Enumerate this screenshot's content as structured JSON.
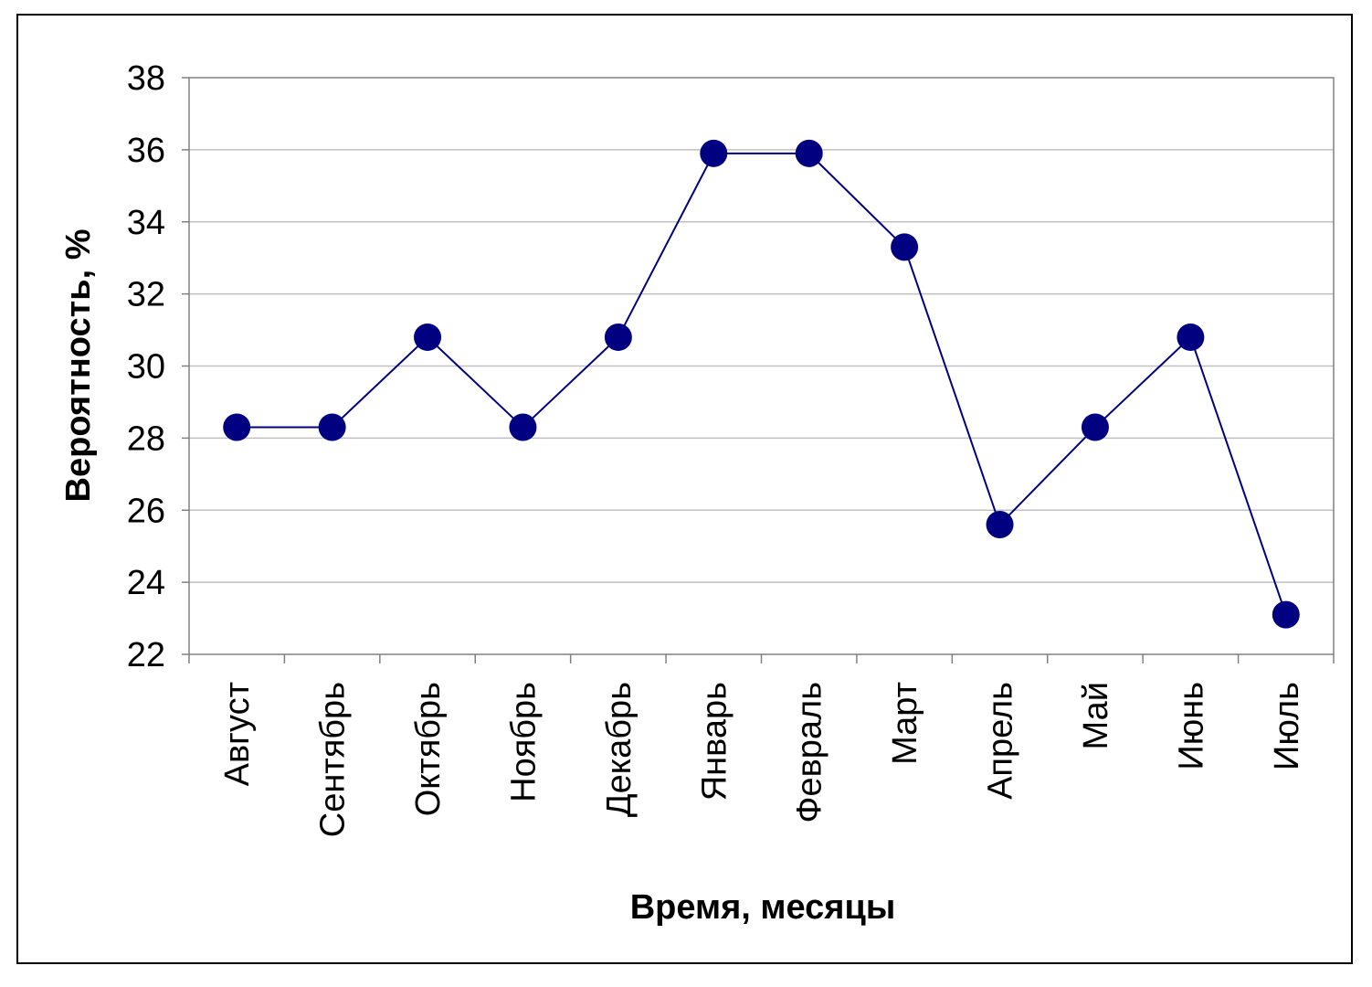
{
  "chart_data": {
    "type": "line",
    "title": "",
    "xlabel": "Время, месяцы",
    "ylabel": "Вероятность, %",
    "categories": [
      "Август",
      "Сентябрь",
      "Октябрь",
      "Ноябрь",
      "Декабрь",
      "Январь",
      "Февраль",
      "Март",
      "Апрель",
      "Май",
      "Июнь",
      "Июль"
    ],
    "series": [
      {
        "values": [
          28.3,
          28.3,
          30.8,
          28.3,
          30.8,
          35.9,
          35.9,
          33.3,
          25.6,
          28.3,
          30.8,
          23.1
        ],
        "color": "#000080"
      }
    ],
    "ylim": [
      22,
      38
    ],
    "yticks": [
      "22",
      "24",
      "26",
      "28",
      "30",
      "32",
      "34",
      "36",
      "38"
    ],
    "grid": true,
    "legend": "none",
    "line_color": "#000080",
    "marker_color": "#000080",
    "grid_color": "#c0c0c0",
    "plot_border_color": "#808080"
  }
}
